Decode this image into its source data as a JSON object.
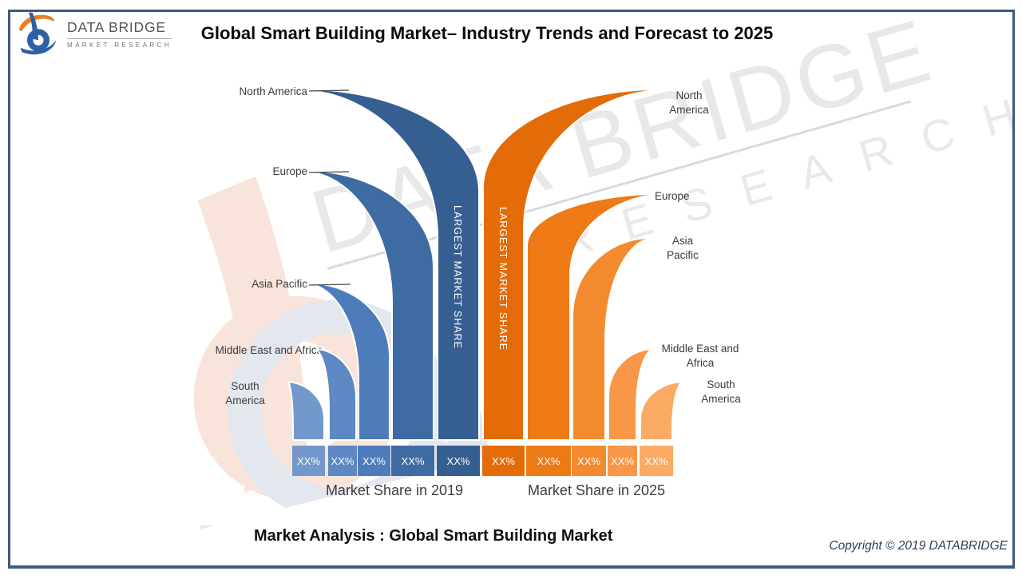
{
  "header": {
    "logo": {
      "brand": "DATA BRIDGE",
      "tagline": "MARKET RESEARCH"
    },
    "title": "Global Smart Building Market– Industry Trends and Forecast to 2025"
  },
  "watermark": {
    "brand": "DATA BRIDGE",
    "tagline": "RESEARCH"
  },
  "chart_data": {
    "type": "bar",
    "variant": "mirrored-funnel regional market share comparison",
    "categories": [
      "North America",
      "Europe",
      "Asia Pacific",
      "Middle East and Africa",
      "South America"
    ],
    "series": [
      {
        "name": "Market Share in 2019",
        "values": [
          "XX%",
          "XX%",
          "XX%",
          "XX%",
          "XX%"
        ],
        "colors": [
          "#365f91",
          "#3f6ba3",
          "#4e7cba",
          "#5d88c3",
          "#7398cb"
        ]
      },
      {
        "name": "Market Share in 2025",
        "values": [
          "XX%",
          "XX%",
          "XX%",
          "XX%",
          "XX%"
        ],
        "colors": [
          "#e36c09",
          "#ee7a16",
          "#f48a2e",
          "#f89748",
          "#fbaa64"
        ]
      }
    ],
    "annotation": "LARGEST MARKET SHARE",
    "legend_position": "bottom"
  },
  "footer": {
    "analysis_title": "Market Analysis : Global Smart Building Market",
    "copyright": "Copyright © 2019 DATABRIDGE"
  }
}
